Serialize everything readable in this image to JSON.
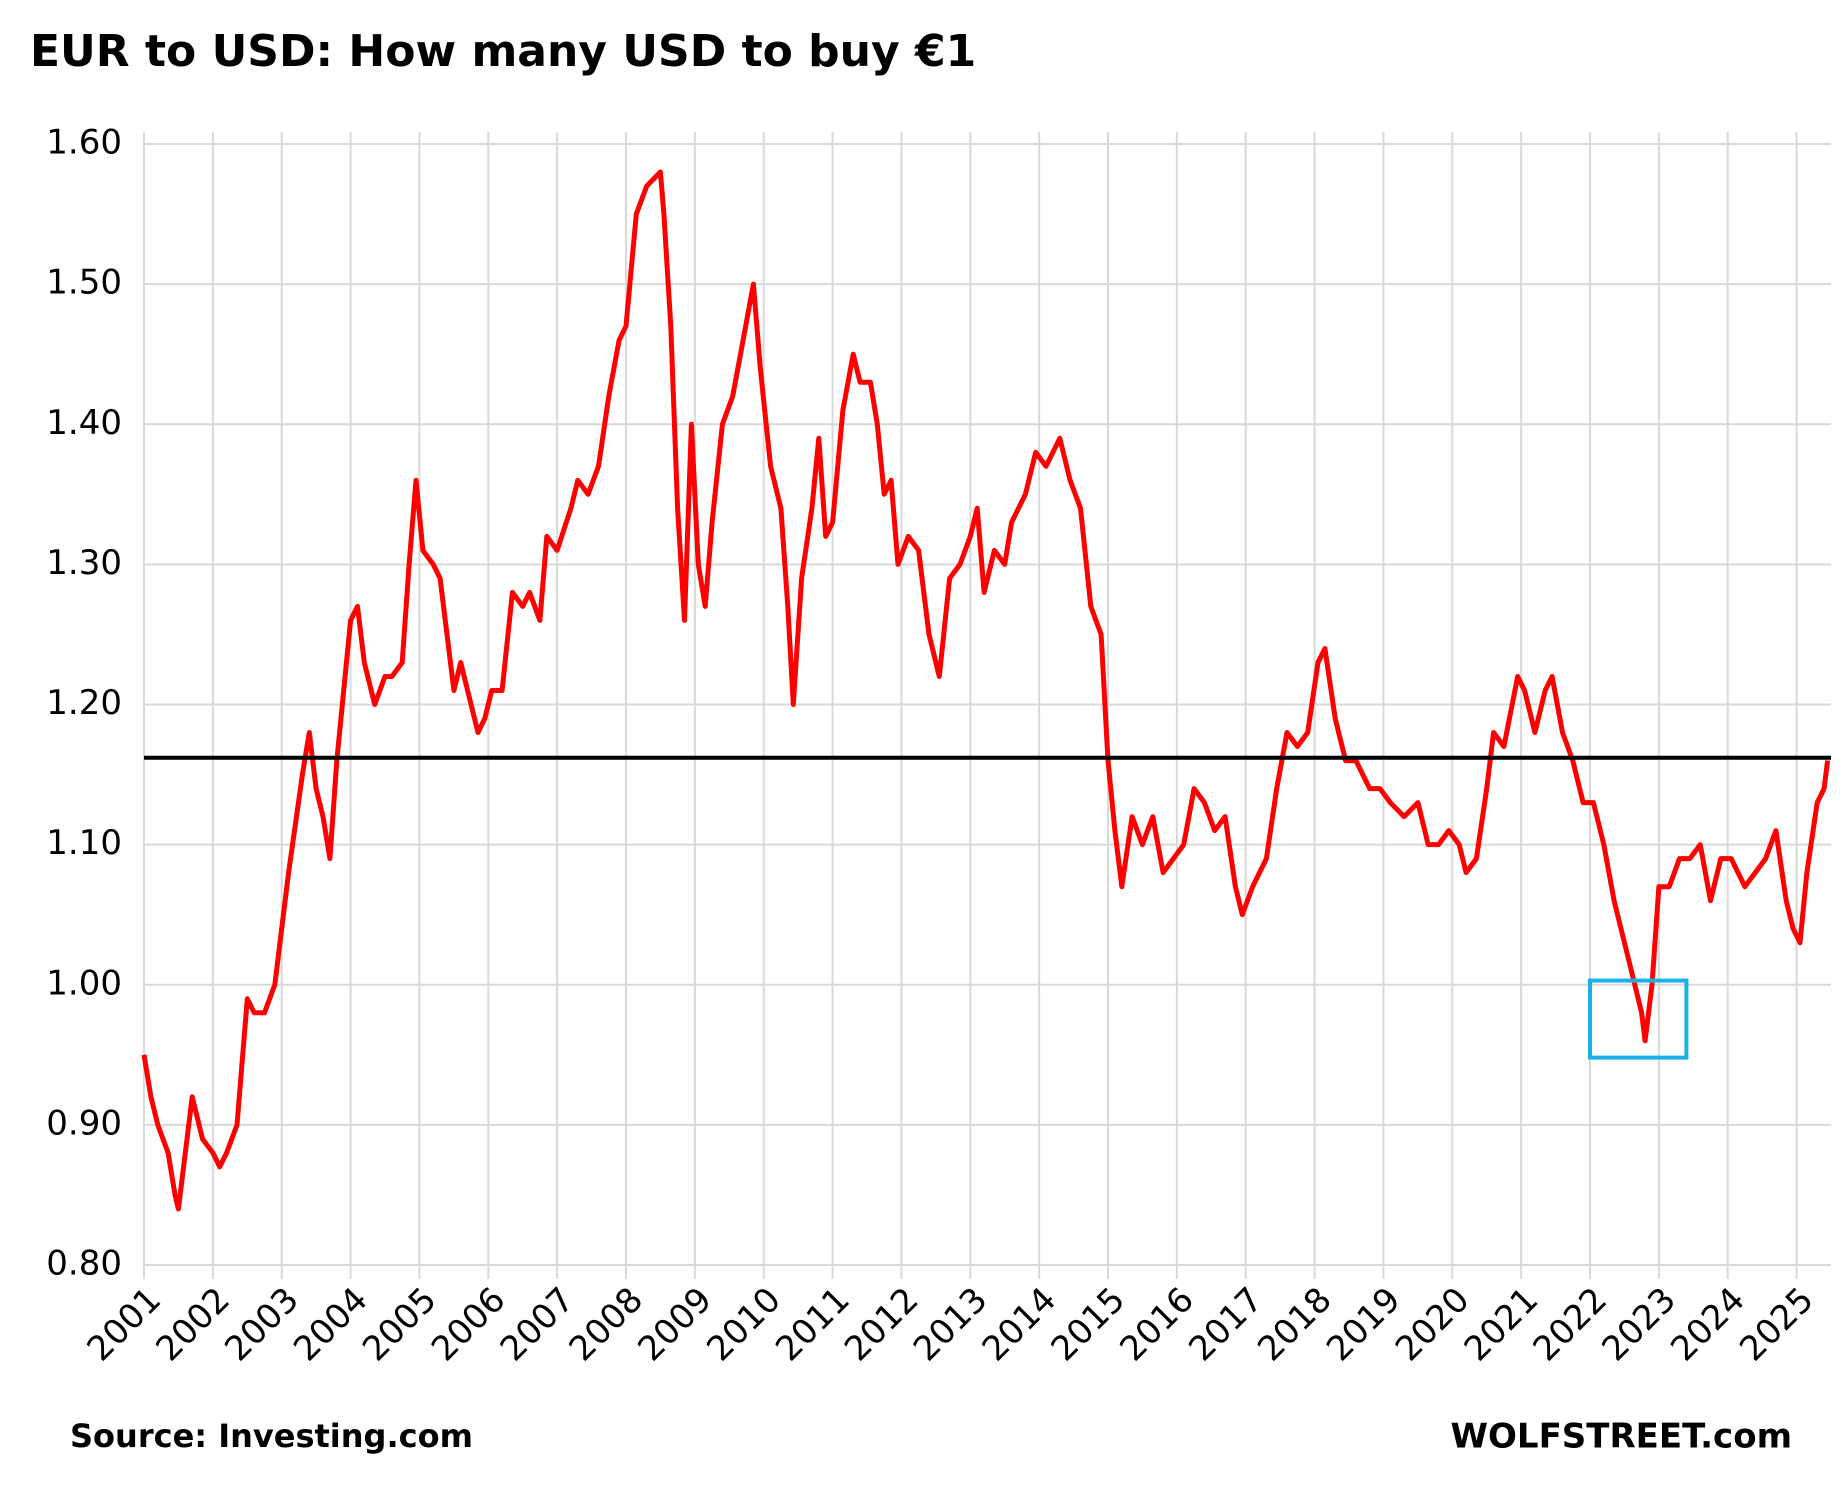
{
  "chart_data": {
    "type": "line",
    "title": "EUR to USD: How many USD to buy  €1",
    "source": "Source: Investing.com",
    "credit": "WOLFSTREET.com",
    "xlim": [
      2001,
      2025.5
    ],
    "xticks": [
      2001,
      2002,
      2003,
      2004,
      2005,
      2006,
      2007,
      2008,
      2009,
      2010,
      2011,
      2012,
      2013,
      2014,
      2015,
      2016,
      2017,
      2018,
      2019,
      2020,
      2021,
      2022,
      2023,
      2024,
      2025
    ],
    "ylim": [
      0.8,
      1.6
    ],
    "yticks": [
      {
        "value": 0.8,
        "label": "0.80"
      },
      {
        "value": 0.9,
        "label": "0.90"
      },
      {
        "value": 1.0,
        "label": "1.00"
      },
      {
        "value": 1.1,
        "label": "1.10"
      },
      {
        "value": 1.2,
        "label": "1.20"
      },
      {
        "value": 1.3,
        "label": "1.30"
      },
      {
        "value": 1.4,
        "label": "1.40"
      },
      {
        "value": 1.5,
        "label": "1.50"
      },
      {
        "value": 1.6,
        "label": "1.60"
      }
    ],
    "grid": true,
    "reference_line": {
      "value": 1.162,
      "color": "#000000"
    },
    "highlight_box": {
      "x": [
        2022.0,
        2023.4
      ],
      "y": [
        0.948,
        1.003
      ],
      "color": "#1ab0e8"
    },
    "x": [
      2001.0,
      2001.1,
      2001.2,
      2001.35,
      2001.45,
      2001.5,
      2001.6,
      2001.7,
      2001.85,
      2002.0,
      2002.1,
      2002.2,
      2002.35,
      2002.5,
      2002.6,
      2002.75,
      2002.9,
      2003.0,
      2003.1,
      2003.3,
      2003.4,
      2003.5,
      2003.6,
      2003.7,
      2003.8,
      2003.9,
      2004.0,
      2004.1,
      2004.2,
      2004.35,
      2004.5,
      2004.6,
      2004.75,
      2004.85,
      2004.95,
      2005.05,
      2005.2,
      2005.3,
      2005.5,
      2005.6,
      2005.7,
      2005.85,
      2005.95,
      2006.05,
      2006.2,
      2006.35,
      2006.5,
      2006.6,
      2006.75,
      2006.85,
      2007.0,
      2007.2,
      2007.3,
      2007.45,
      2007.6,
      2007.75,
      2007.9,
      2008.0,
      2008.15,
      2008.3,
      2008.5,
      2008.55,
      2008.65,
      2008.75,
      2008.85,
      2008.95,
      2009.05,
      2009.15,
      2009.25,
      2009.4,
      2009.55,
      2009.7,
      2009.85,
      2009.95,
      2010.1,
      2010.25,
      2010.35,
      2010.43,
      2010.55,
      2010.7,
      2010.8,
      2010.9,
      2011.0,
      2011.15,
      2011.3,
      2011.4,
      2011.55,
      2011.65,
      2011.75,
      2011.85,
      2011.95,
      2012.1,
      2012.25,
      2012.4,
      2012.55,
      2012.7,
      2012.85,
      2013.0,
      2013.1,
      2013.2,
      2013.35,
      2013.5,
      2013.6,
      2013.8,
      2013.95,
      2014.1,
      2014.3,
      2014.45,
      2014.6,
      2014.75,
      2014.9,
      2015.0,
      2015.1,
      2015.2,
      2015.35,
      2015.5,
      2015.65,
      2015.8,
      2015.95,
      2016.1,
      2016.25,
      2016.4,
      2016.55,
      2016.7,
      2016.85,
      2016.95,
      2017.1,
      2017.3,
      2017.45,
      2017.6,
      2017.75,
      2017.9,
      2018.05,
      2018.15,
      2018.3,
      2018.45,
      2018.6,
      2018.8,
      2018.95,
      2019.1,
      2019.3,
      2019.5,
      2019.65,
      2019.8,
      2019.95,
      2020.1,
      2020.2,
      2020.35,
      2020.5,
      2020.6,
      2020.75,
      2020.95,
      2021.05,
      2021.2,
      2021.35,
      2021.45,
      2021.6,
      2021.75,
      2021.9,
      2022.05,
      2022.2,
      2022.35,
      2022.45,
      2022.55,
      2022.65,
      2022.75,
      2022.8,
      2022.9,
      2023.0,
      2023.15,
      2023.3,
      2023.45,
      2023.6,
      2023.75,
      2023.9,
      2024.05,
      2024.25,
      2024.4,
      2024.55,
      2024.7,
      2024.85,
      2024.95,
      2025.05,
      2025.15,
      2025.3,
      2025.4,
      2025.45
    ],
    "series": [
      {
        "color": "#ff0000",
        "values": [
          0.95,
          0.92,
          0.9,
          0.88,
          0.85,
          0.84,
          0.88,
          0.92,
          0.89,
          0.88,
          0.87,
          0.88,
          0.9,
          0.99,
          0.98,
          0.98,
          1.0,
          1.04,
          1.08,
          1.15,
          1.18,
          1.14,
          1.12,
          1.09,
          1.16,
          1.21,
          1.26,
          1.27,
          1.23,
          1.2,
          1.22,
          1.22,
          1.23,
          1.3,
          1.36,
          1.31,
          1.3,
          1.29,
          1.21,
          1.23,
          1.21,
          1.18,
          1.19,
          1.21,
          1.21,
          1.28,
          1.27,
          1.28,
          1.26,
          1.32,
          1.31,
          1.34,
          1.36,
          1.35,
          1.37,
          1.42,
          1.46,
          1.47,
          1.55,
          1.57,
          1.58,
          1.55,
          1.47,
          1.34,
          1.26,
          1.4,
          1.3,
          1.27,
          1.33,
          1.4,
          1.42,
          1.46,
          1.5,
          1.44,
          1.37,
          1.34,
          1.27,
          1.2,
          1.29,
          1.34,
          1.39,
          1.32,
          1.33,
          1.41,
          1.45,
          1.43,
          1.43,
          1.4,
          1.35,
          1.36,
          1.3,
          1.32,
          1.31,
          1.25,
          1.22,
          1.29,
          1.3,
          1.32,
          1.34,
          1.28,
          1.31,
          1.3,
          1.33,
          1.35,
          1.38,
          1.37,
          1.39,
          1.36,
          1.34,
          1.27,
          1.25,
          1.16,
          1.11,
          1.07,
          1.12,
          1.1,
          1.12,
          1.08,
          1.09,
          1.1,
          1.14,
          1.13,
          1.11,
          1.12,
          1.07,
          1.05,
          1.07,
          1.09,
          1.14,
          1.18,
          1.17,
          1.18,
          1.23,
          1.24,
          1.19,
          1.16,
          1.16,
          1.14,
          1.14,
          1.13,
          1.12,
          1.13,
          1.1,
          1.1,
          1.11,
          1.1,
          1.08,
          1.09,
          1.14,
          1.18,
          1.17,
          1.22,
          1.21,
          1.18,
          1.21,
          1.22,
          1.18,
          1.16,
          1.13,
          1.13,
          1.1,
          1.06,
          1.04,
          1.02,
          1.0,
          0.98,
          0.96,
          1.0,
          1.07,
          1.07,
          1.09,
          1.09,
          1.1,
          1.06,
          1.09,
          1.09,
          1.07,
          1.08,
          1.09,
          1.11,
          1.06,
          1.04,
          1.03,
          1.08,
          1.13,
          1.14,
          1.16
        ]
      }
    ]
  }
}
